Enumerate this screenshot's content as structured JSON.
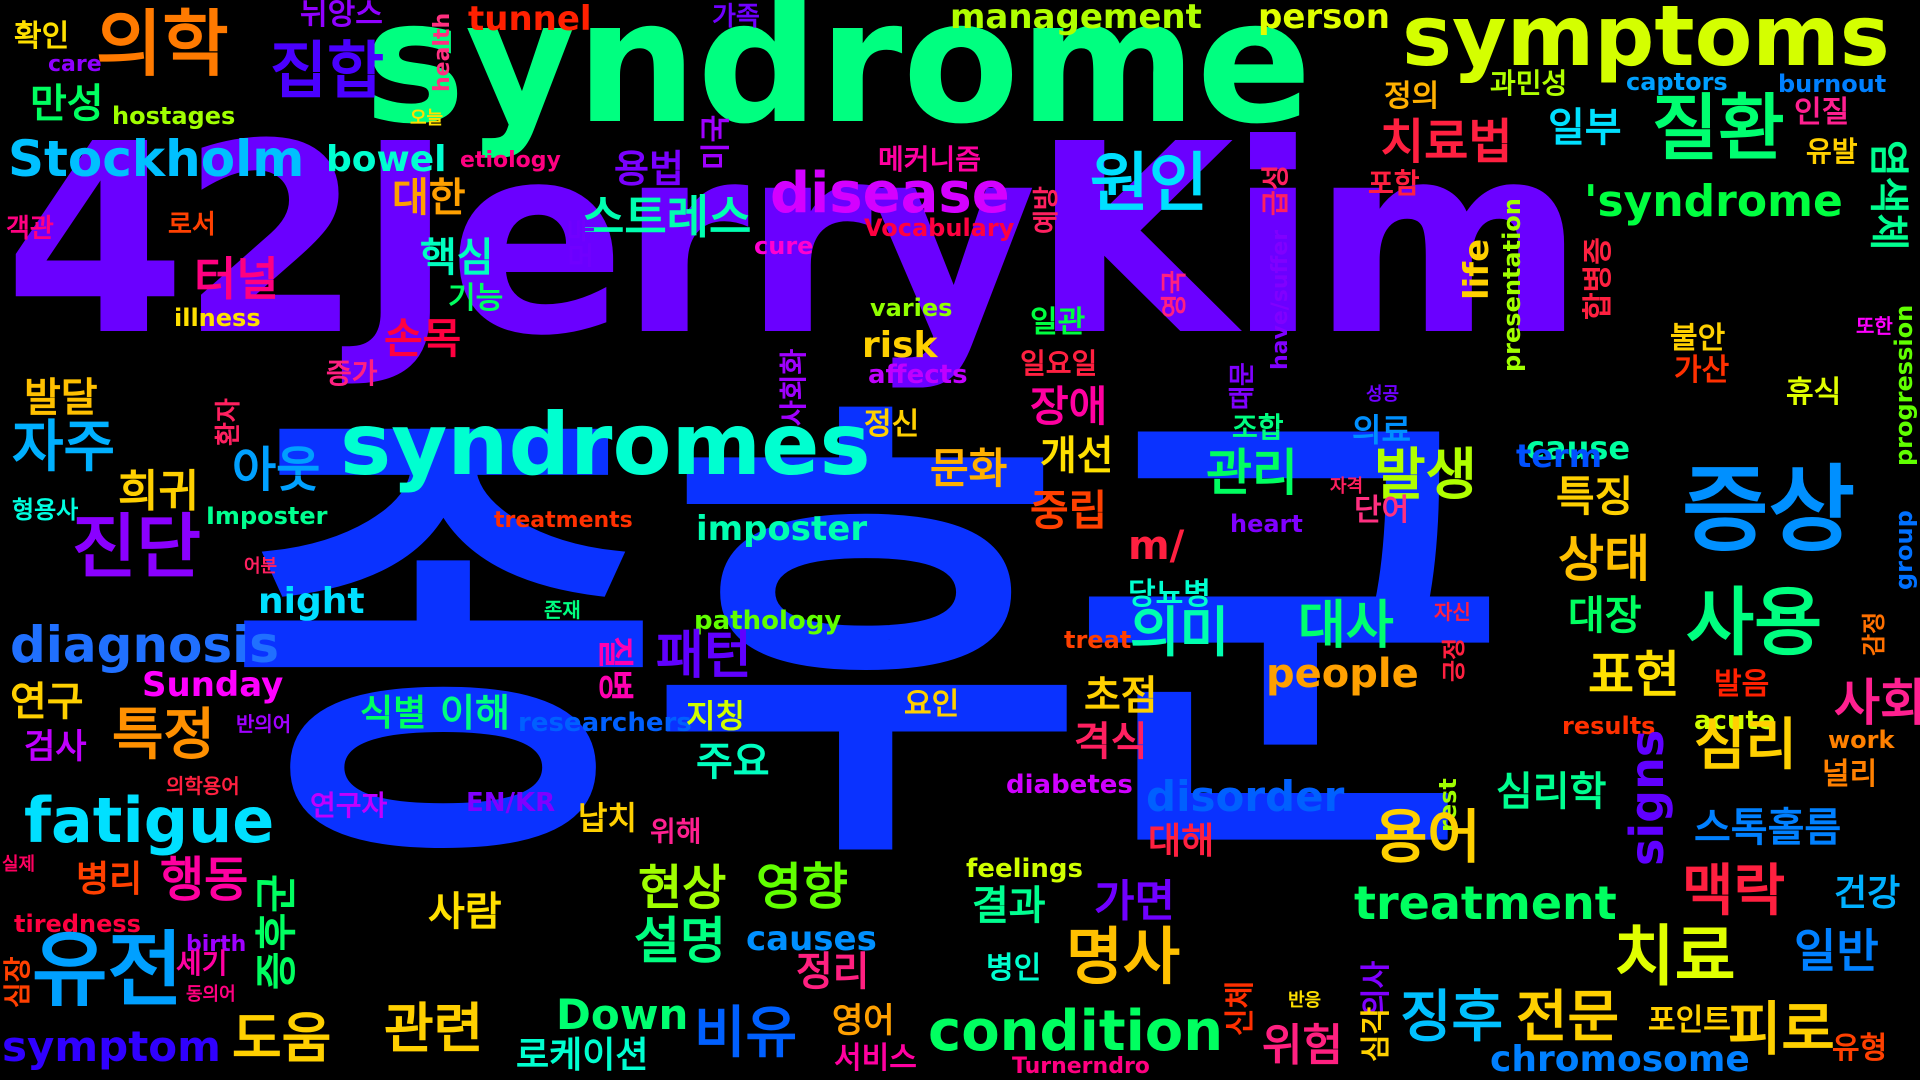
{
  "words": [
    {
      "text": "종후군",
      "color": "#0a32ff"
    },
    {
      "text": "42JerryKim",
      "color": "#6a00ff"
    },
    {
      "text": "syndrome",
      "color": "#00ff80"
    },
    {
      "text": "symptoms",
      "color": "#d4ff00"
    },
    {
      "text": "syndromes",
      "color": "#00ffd0"
    },
    {
      "text": "증상",
      "color": "#0090ff"
    },
    {
      "text": "의학",
      "color": "#ff7a00"
    },
    {
      "text": "집합",
      "color": "#4a00ff"
    },
    {
      "text": "질환",
      "color": "#00ff70"
    },
    {
      "text": "disease",
      "color": "#d400ff"
    },
    {
      "text": "원인",
      "color": "#00e0ff"
    },
    {
      "text": "'syndrome",
      "color": "#00ff40"
    },
    {
      "text": "Stockholm",
      "color": "#00c0ff"
    },
    {
      "text": "bowel",
      "color": "#00ffd0"
    },
    {
      "text": "management",
      "color": "#b0ff00"
    },
    {
      "text": "person",
      "color": "#e0ff00"
    },
    {
      "text": "tunnel",
      "color": "#ff2000"
    },
    {
      "text": "뉘앙스",
      "color": "#9000ff"
    },
    {
      "text": "hostages",
      "color": "#a0ff00"
    },
    {
      "text": "확인",
      "color": "#ffe000"
    },
    {
      "text": "care",
      "color": "#9000ff"
    },
    {
      "text": "만성",
      "color": "#00ff60"
    },
    {
      "text": "captors",
      "color": "#00a0ff"
    },
    {
      "text": "burnout",
      "color": "#0080ff"
    },
    {
      "text": "과민성",
      "color": "#b0ff00"
    },
    {
      "text": "인질",
      "color": "#ff2090"
    },
    {
      "text": "유발",
      "color": "#ffd000"
    },
    {
      "text": "염색체",
      "color": "#00ff90"
    },
    {
      "text": "치료법",
      "color": "#ff2040"
    },
    {
      "text": "일부",
      "color": "#00e0ff"
    },
    {
      "text": "정의",
      "color": "#ffb000"
    },
    {
      "text": "스트레스",
      "color": "#00ffb0"
    },
    {
      "text": "용법",
      "color": "#7a00ff"
    },
    {
      "text": "대한",
      "color": "#ffa000"
    },
    {
      "text": "핵심",
      "color": "#00ffc0"
    },
    {
      "text": "터널",
      "color": "#ff0080"
    },
    {
      "text": "기능",
      "color": "#00ff60"
    },
    {
      "text": "illness",
      "color": "#ffe000"
    },
    {
      "text": "varies",
      "color": "#90ff00"
    },
    {
      "text": "risk",
      "color": "#ffd000"
    },
    {
      "text": "affects",
      "color": "#c000ff"
    },
    {
      "text": "일관",
      "color": "#00ff40"
    },
    {
      "text": "일요일",
      "color": "#ff2040"
    },
    {
      "text": "cure",
      "color": "#ff00d0"
    },
    {
      "text": "Vocabulary",
      "color": "#ff0040"
    },
    {
      "text": "로서",
      "color": "#ff4000"
    },
    {
      "text": "객관",
      "color": "#ff0080"
    },
    {
      "text": "손목",
      "color": "#ff0040"
    },
    {
      "text": "장애",
      "color": "#ff00a0"
    },
    {
      "text": "발달",
      "color": "#ffc000"
    },
    {
      "text": "자주",
      "color": "#00b0ff"
    },
    {
      "text": "아웃",
      "color": "#00a0ff"
    },
    {
      "text": "문화",
      "color": "#ffb000"
    },
    {
      "text": "개선",
      "color": "#ffe000"
    },
    {
      "text": "관리",
      "color": "#00ff60"
    },
    {
      "text": "발생",
      "color": "#b0ff00"
    },
    {
      "text": "cause",
      "color": "#00ffa0"
    },
    {
      "text": "term",
      "color": "#0050ff"
    },
    {
      "text": "특징",
      "color": "#ffd000"
    },
    {
      "text": "희귀",
      "color": "#ffd000"
    },
    {
      "text": "중립",
      "color": "#ff4000"
    },
    {
      "text": "형용사",
      "color": "#00ffe0"
    },
    {
      "text": "Imposter",
      "color": "#00ff90"
    },
    {
      "text": "treatments",
      "color": "#ff3000"
    },
    {
      "text": "imposter",
      "color": "#00ffb0"
    },
    {
      "text": "heart",
      "color": "#8000ff"
    },
    {
      "text": "단어",
      "color": "#ff3080"
    },
    {
      "text": "진단",
      "color": "#8a00ff"
    },
    {
      "text": "night",
      "color": "#00e0ff"
    },
    {
      "text": "m/",
      "color": "#ff2040"
    },
    {
      "text": "상태",
      "color": "#ffc000"
    },
    {
      "text": "당뇨병",
      "color": "#00ffd0"
    },
    {
      "text": "의미",
      "color": "#00ffb0"
    },
    {
      "text": "대사",
      "color": "#00ff70"
    },
    {
      "text": "대장",
      "color": "#00ff60"
    },
    {
      "text": "사용",
      "color": "#00ff80"
    },
    {
      "text": "diagnosis",
      "color": "#2070ff"
    },
    {
      "text": "pathology",
      "color": "#60ff00"
    },
    {
      "text": "treat",
      "color": "#ff4000"
    },
    {
      "text": "존재",
      "color": "#00ff80"
    },
    {
      "text": "패턴",
      "color": "#6000ff"
    },
    {
      "text": "people",
      "color": "#ffa000"
    },
    {
      "text": "표현",
      "color": "#ffe000"
    },
    {
      "text": "Sunday",
      "color": "#ff00ff"
    },
    {
      "text": "연구",
      "color": "#ffd000"
    },
    {
      "text": "특정",
      "color": "#ff9000"
    },
    {
      "text": "검사",
      "color": "#c000ff"
    },
    {
      "text": "식별",
      "color": "#00ff60"
    },
    {
      "text": "이해",
      "color": "#00ff80"
    },
    {
      "text": "researchers",
      "color": "#0060ff"
    },
    {
      "text": "초점",
      "color": "#ffd000"
    },
    {
      "text": "요인",
      "color": "#ffd000"
    },
    {
      "text": "지칭",
      "color": "#d0ff00"
    },
    {
      "text": "results",
      "color": "#ff3000"
    },
    {
      "text": "acute",
      "color": "#d0ff00"
    },
    {
      "text": "사회",
      "color": "#ff2090"
    },
    {
      "text": "발음",
      "color": "#ff2000"
    },
    {
      "text": "work",
      "color": "#ff8000"
    },
    {
      "text": "심리",
      "color": "#ffd000"
    },
    {
      "text": "격식",
      "color": "#ff2060"
    },
    {
      "text": "주요",
      "color": "#00ffc0"
    },
    {
      "text": "반의어",
      "color": "#a000ff"
    },
    {
      "text": "의학용어",
      "color": "#ff2040"
    },
    {
      "text": "fatigue",
      "color": "#00e0ff"
    },
    {
      "text": "disorder",
      "color": "#0060ff"
    },
    {
      "text": "diabetes",
      "color": "#d000ff"
    },
    {
      "text": "연구자",
      "color": "#c000ff"
    },
    {
      "text": "EN/KR",
      "color": "#8000ff"
    },
    {
      "text": "납치",
      "color": "#ffd000"
    },
    {
      "text": "심리학",
      "color": "#00ff90"
    },
    {
      "text": "널리",
      "color": "#ff8000"
    },
    {
      "text": "signs",
      "color": "#6000ff"
    },
    {
      "text": "스톡홀름",
      "color": "#0080ff"
    },
    {
      "text": "rest",
      "color": "#a0ff00"
    },
    {
      "text": "대해",
      "color": "#ff2040"
    },
    {
      "text": "용어",
      "color": "#ffd000"
    },
    {
      "text": "위해",
      "color": "#ff2090"
    },
    {
      "text": "실제",
      "color": "#ff0060"
    },
    {
      "text": "병리",
      "color": "#ff4000"
    },
    {
      "text": "행동",
      "color": "#ff00a0"
    },
    {
      "text": "feelings",
      "color": "#d0ff00"
    },
    {
      "text": "현상",
      "color": "#a0ff00"
    },
    {
      "text": "영향",
      "color": "#60ff00"
    },
    {
      "text": "결과",
      "color": "#00ff90"
    },
    {
      "text": "가면",
      "color": "#7000ff"
    },
    {
      "text": "treatment",
      "color": "#00ff60"
    },
    {
      "text": "맥락",
      "color": "#ff2040"
    },
    {
      "text": "건강",
      "color": "#00b0ff"
    },
    {
      "text": "사람",
      "color": "#ffe000"
    },
    {
      "text": "설명",
      "color": "#00ff80"
    },
    {
      "text": "명사",
      "color": "#ffc000"
    },
    {
      "text": "tiredness",
      "color": "#ff0040"
    },
    {
      "text": "birth",
      "color": "#a000ff"
    },
    {
      "text": "세기",
      "color": "#ff00a0"
    },
    {
      "text": "causes",
      "color": "#0090ff"
    },
    {
      "text": "정리",
      "color": "#ff2080"
    },
    {
      "text": "병인",
      "color": "#00ffd0"
    },
    {
      "text": "치료",
      "color": "#e0ff00"
    },
    {
      "text": "일반",
      "color": "#0080ff"
    },
    {
      "text": "동의어",
      "color": "#ff0080"
    },
    {
      "text": "심장",
      "color": "#ff4000"
    },
    {
      "text": "반응",
      "color": "#ffe000"
    },
    {
      "text": "Down",
      "color": "#00ff70"
    },
    {
      "text": "관련",
      "color": "#ffd000"
    },
    {
      "text": "도움",
      "color": "#ffd000"
    },
    {
      "text": "symptom",
      "color": "#3000ff"
    },
    {
      "text": "비유",
      "color": "#0060ff"
    },
    {
      "text": "condition",
      "color": "#00ff60"
    },
    {
      "text": "영어",
      "color": "#ffa000"
    },
    {
      "text": "서비스",
      "color": "#ff00a0"
    },
    {
      "text": "로케이션",
      "color": "#00ffd0"
    },
    {
      "text": "위험",
      "color": "#ff2080"
    },
    {
      "text": "Turnerndro",
      "color": "#ff0080"
    },
    {
      "text": "징후",
      "color": "#00c0ff"
    },
    {
      "text": "전문",
      "color": "#ffd000"
    },
    {
      "text": "포인트",
      "color": "#ffd000"
    },
    {
      "text": "chromosome",
      "color": "#0080ff"
    },
    {
      "text": "피로",
      "color": "#ffd000"
    },
    {
      "text": "유형",
      "color": "#ff4000"
    },
    {
      "text": "유전",
      "color": "#00a0ff"
    },
    {
      "text": "health",
      "color": "#ff3080"
    },
    {
      "text": "오늘",
      "color": "#ffe000"
    },
    {
      "text": "etiology",
      "color": "#ff0080"
    },
    {
      "text": "미국",
      "color": "#a000ff"
    },
    {
      "text": "메커니즘",
      "color": "#ff00a0"
    },
    {
      "text": "포함",
      "color": "#ff2040"
    },
    {
      "text": "급성",
      "color": "#ff2060"
    },
    {
      "text": "예방",
      "color": "#ff2060"
    },
    {
      "text": "모두",
      "color": "#7000ff"
    },
    {
      "text": "영국",
      "color": "#ff2080"
    },
    {
      "text": "have/suffer",
      "color": "#8000ff"
    },
    {
      "text": "presentation",
      "color": "#a0ff00"
    },
    {
      "text": "life",
      "color": "#ffd000"
    },
    {
      "text": "합병증",
      "color": "#ff2040"
    },
    {
      "text": "또한",
      "color": "#ff00ff"
    },
    {
      "text": "progression",
      "color": "#60ff00"
    },
    {
      "text": "불안",
      "color": "#ffd000"
    },
    {
      "text": "가산",
      "color": "#ff3000"
    },
    {
      "text": "휴식",
      "color": "#e0ff00"
    },
    {
      "text": "group",
      "color": "#0070ff"
    },
    {
      "text": "사회화",
      "color": "#a000ff"
    },
    {
      "text": "증가",
      "color": "#ff2080"
    },
    {
      "text": "때문",
      "color": "#8000ff"
    },
    {
      "text": "조합",
      "color": "#00ff80"
    },
    {
      "text": "의료",
      "color": "#0090ff"
    },
    {
      "text": "성공",
      "color": "#7000ff"
    },
    {
      "text": "자격",
      "color": "#ff2060"
    },
    {
      "text": "정신",
      "color": "#ffd000"
    },
    {
      "text": "환자",
      "color": "#ff2060"
    },
    {
      "text": "어분",
      "color": "#ff2060"
    },
    {
      "text": "질병",
      "color": "#ff00b0"
    },
    {
      "text": "자신",
      "color": "#ff2040"
    },
    {
      "text": "긍정",
      "color": "#ff2040"
    },
    {
      "text": "감정",
      "color": "#ff7000"
    },
    {
      "text": "가족",
      "color": "#7000ff"
    },
    {
      "text": "증후군",
      "color": "#00ff60"
    },
    {
      "text": "신체",
      "color": "#ff3000"
    },
    {
      "text": "의사",
      "color": "#8000ff"
    },
    {
      "text": "심각",
      "color": "#ffd000"
    }
  ]
}
